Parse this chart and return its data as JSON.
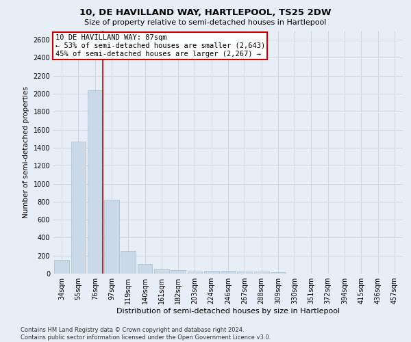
{
  "title1": "10, DE HAVILLAND WAY, HARTLEPOOL, TS25 2DW",
  "title2": "Size of property relative to semi-detached houses in Hartlepool",
  "xlabel": "Distribution of semi-detached houses by size in Hartlepool",
  "ylabel": "Number of semi-detached properties",
  "categories": [
    "34sqm",
    "55sqm",
    "76sqm",
    "97sqm",
    "119sqm",
    "140sqm",
    "161sqm",
    "182sqm",
    "203sqm",
    "224sqm",
    "246sqm",
    "267sqm",
    "288sqm",
    "309sqm",
    "330sqm",
    "351sqm",
    "372sqm",
    "394sqm",
    "415sqm",
    "436sqm",
    "457sqm"
  ],
  "values": [
    150,
    1470,
    2040,
    820,
    250,
    110,
    55,
    35,
    20,
    30,
    30,
    25,
    20,
    15,
    0,
    0,
    0,
    0,
    0,
    0,
    0
  ],
  "bar_color": "#c9d9e8",
  "bar_edge_color": "#a8bece",
  "property_bar_index": 2,
  "annotation_text_line1": "10 DE HAVILLAND WAY: 87sqm",
  "annotation_text_line2": "← 53% of semi-detached houses are smaller (2,643)",
  "annotation_text_line3": "45% of semi-detached houses are larger (2,267) →",
  "vline_color": "#cc0000",
  "annotation_box_facecolor": "#ffffff",
  "annotation_box_edgecolor": "#cc0000",
  "grid_color": "#cdd6e3",
  "background_color": "#e8eef5",
  "plot_bg_color": "#e8eef5",
  "ylim": [
    0,
    2700
  ],
  "ytick_interval": 200,
  "title1_fontsize": 9.5,
  "title2_fontsize": 8,
  "ylabel_fontsize": 7.5,
  "xlabel_fontsize": 8,
  "tick_fontsize": 7,
  "ann_fontsize": 7.5,
  "footer_line1": "Contains HM Land Registry data © Crown copyright and database right 2024.",
  "footer_line2": "Contains public sector information licensed under the Open Government Licence v3.0."
}
